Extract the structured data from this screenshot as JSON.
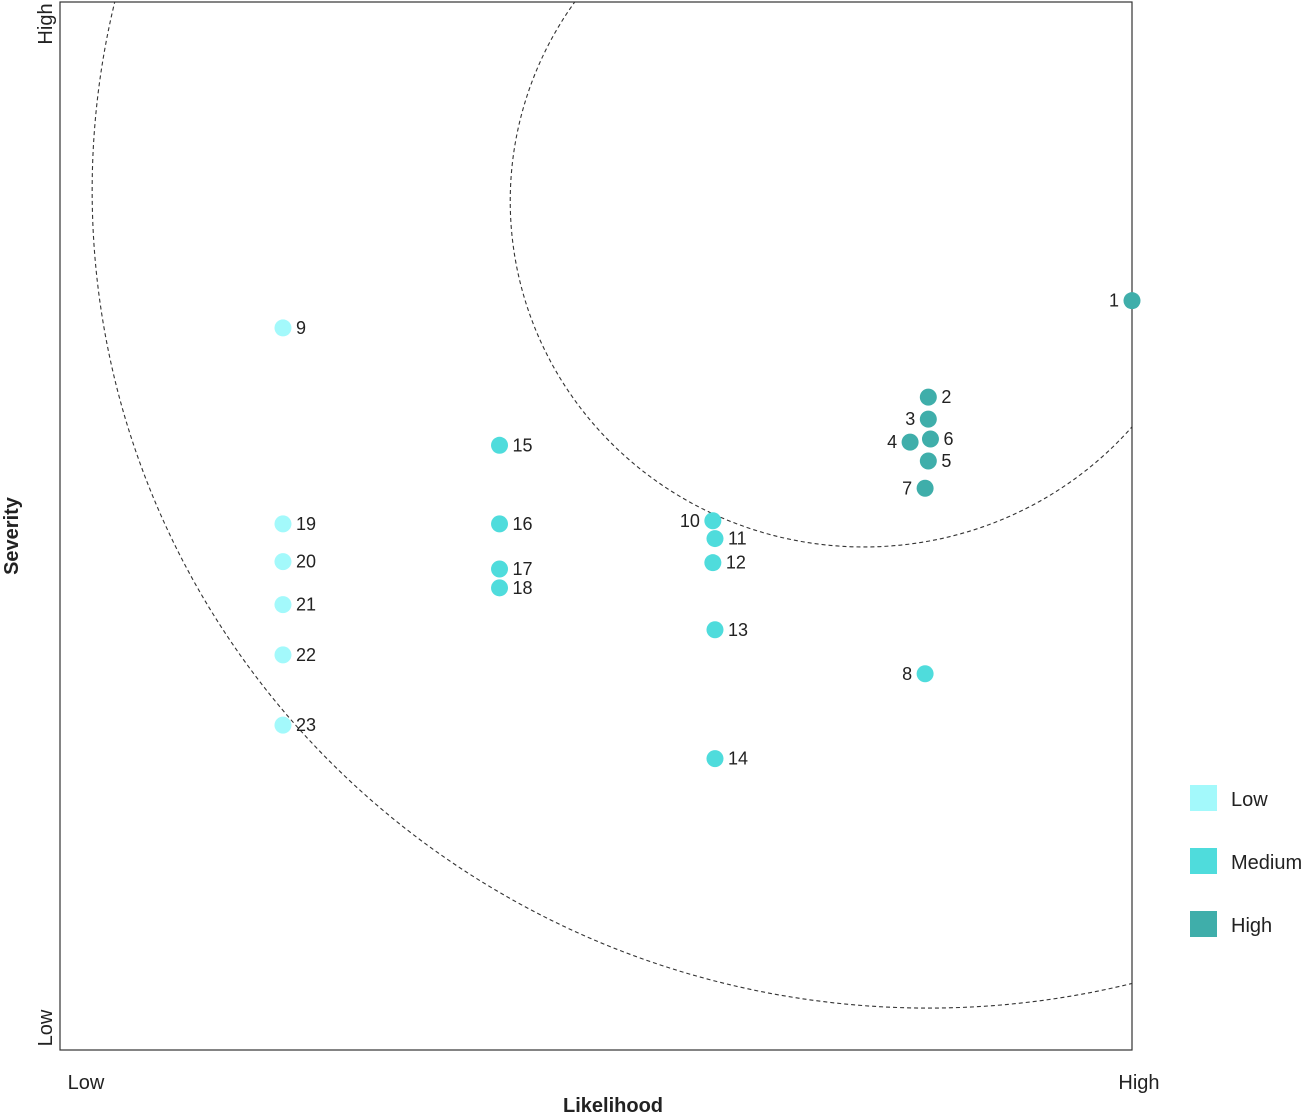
{
  "chart_data": {
    "type": "scatter",
    "title": "",
    "xlabel": "Likelihood",
    "ylabel": "Severity",
    "x_ticks": {
      "low": "Low",
      "high": "High"
    },
    "y_ticks": {
      "low": "Low",
      "high": "High"
    },
    "xlim": [
      0,
      100
    ],
    "ylim": [
      0,
      100
    ],
    "grid": false,
    "legend_position": "right",
    "categories": [
      {
        "name": "Low",
        "color": "#a3f9fb"
      },
      {
        "name": "Medium",
        "color": "#4fdcdc"
      },
      {
        "name": "High",
        "color": "#3faeaa"
      }
    ],
    "points": [
      {
        "label": "1",
        "x": 100.0,
        "y": 71.5,
        "category": "High",
        "label_side": "left"
      },
      {
        "label": "2",
        "x": 81.0,
        "y": 62.3,
        "category": "High",
        "label_side": "right"
      },
      {
        "label": "3",
        "x": 81.0,
        "y": 60.2,
        "category": "High",
        "label_side": "left"
      },
      {
        "label": "4",
        "x": 79.3,
        "y": 58.0,
        "category": "High",
        "label_side": "left"
      },
      {
        "label": "5",
        "x": 81.0,
        "y": 56.2,
        "category": "High",
        "label_side": "right"
      },
      {
        "label": "6",
        "x": 81.2,
        "y": 58.3,
        "category": "High",
        "label_side": "right"
      },
      {
        "label": "7",
        "x": 80.7,
        "y": 53.6,
        "category": "High",
        "label_side": "left"
      },
      {
        "label": "8",
        "x": 80.7,
        "y": 35.9,
        "category": "Medium",
        "label_side": "left"
      },
      {
        "label": "9",
        "x": 20.8,
        "y": 68.9,
        "category": "Low",
        "label_side": "right"
      },
      {
        "label": "10",
        "x": 60.9,
        "y": 50.5,
        "category": "Medium",
        "label_side": "left"
      },
      {
        "label": "11",
        "x": 61.1,
        "y": 48.8,
        "category": "Medium",
        "label_side": "right"
      },
      {
        "label": "12",
        "x": 60.9,
        "y": 46.5,
        "category": "Medium",
        "label_side": "right"
      },
      {
        "label": "13",
        "x": 61.1,
        "y": 40.1,
        "category": "Medium",
        "label_side": "right"
      },
      {
        "label": "14",
        "x": 61.1,
        "y": 27.8,
        "category": "Medium",
        "label_side": "right"
      },
      {
        "label": "15",
        "x": 41.0,
        "y": 57.7,
        "category": "Medium",
        "label_side": "right"
      },
      {
        "label": "16",
        "x": 41.0,
        "y": 50.2,
        "category": "Medium",
        "label_side": "right"
      },
      {
        "label": "17",
        "x": 41.0,
        "y": 45.9,
        "category": "Medium",
        "label_side": "right"
      },
      {
        "label": "18",
        "x": 41.0,
        "y": 44.1,
        "category": "Medium",
        "label_side": "right"
      },
      {
        "label": "19",
        "x": 20.8,
        "y": 50.2,
        "category": "Low",
        "label_side": "right"
      },
      {
        "label": "20",
        "x": 20.8,
        "y": 46.6,
        "category": "Low",
        "label_side": "right"
      },
      {
        "label": "21",
        "x": 20.8,
        "y": 42.5,
        "category": "Low",
        "label_side": "right"
      },
      {
        "label": "22",
        "x": 20.8,
        "y": 37.7,
        "category": "Low",
        "label_side": "right"
      },
      {
        "label": "23",
        "x": 20.8,
        "y": 31.0,
        "category": "Low",
        "label_side": "right"
      }
    ],
    "zone_boundaries": [
      {
        "center": [
          75,
          81
        ],
        "radius": 33,
        "style": "dashed"
      },
      {
        "center": [
          81,
          82
        ],
        "radius": 78,
        "style": "dashed"
      }
    ]
  }
}
